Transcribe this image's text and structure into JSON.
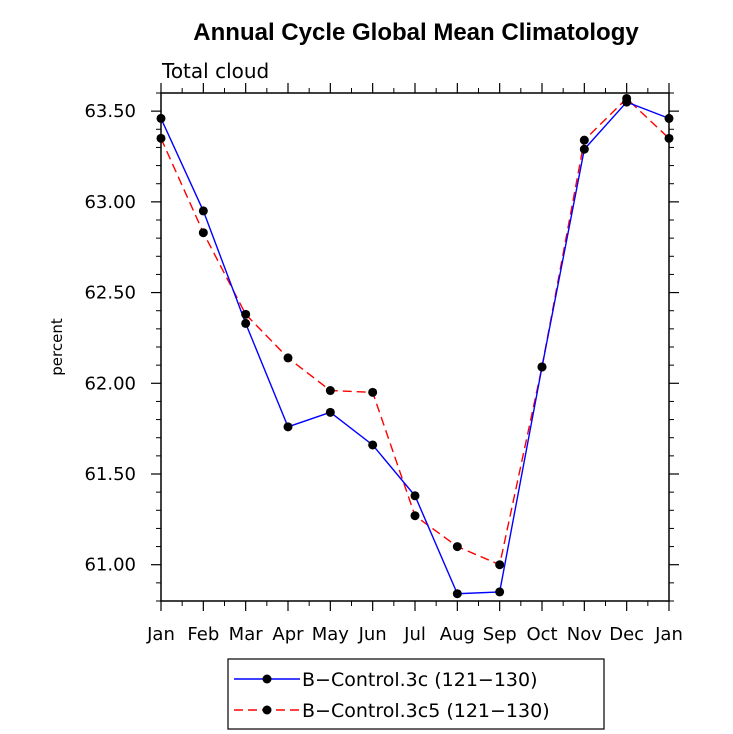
{
  "chart_data": {
    "type": "line",
    "title": "Annual Cycle Global Mean Climatology",
    "subtitle": "Total cloud",
    "ylabel": "percent",
    "xlabel": "",
    "categories": [
      "Jan",
      "Feb",
      "Mar",
      "Apr",
      "May",
      "Jun",
      "Jul",
      "Aug",
      "Sep",
      "Oct",
      "Nov",
      "Dec",
      "Jan"
    ],
    "ylim": [
      60.8,
      63.6
    ],
    "yticks": [
      "61.00",
      "61.50",
      "62.00",
      "62.50",
      "63.00",
      "63.50"
    ],
    "series": [
      {
        "name": "B−Control.3c (121−130)",
        "color": "#0000ff",
        "dash": "solid",
        "values": [
          63.46,
          62.95,
          62.33,
          61.76,
          61.84,
          61.66,
          61.38,
          60.84,
          60.85,
          62.09,
          63.29,
          63.55,
          63.46
        ]
      },
      {
        "name": "B−Control.3c5 (121−130)",
        "color": "#ff0000",
        "dash": "dashed",
        "values": [
          63.35,
          62.83,
          62.38,
          62.14,
          61.96,
          61.95,
          61.27,
          61.1,
          61.0,
          62.09,
          63.34,
          63.57,
          63.35
        ]
      }
    ],
    "legend": "bottom"
  }
}
